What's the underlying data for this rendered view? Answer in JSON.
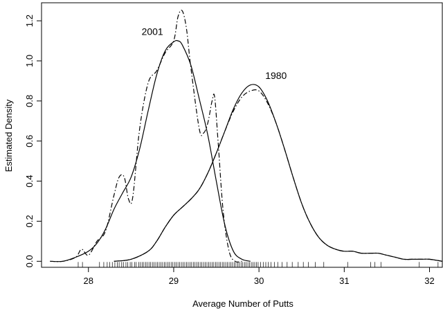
{
  "chart_data": {
    "type": "line",
    "title": "",
    "xlabel": "Average Number of Putts",
    "ylabel": "Estimated Density",
    "xlim": [
      27.45,
      32.15
    ],
    "ylim": [
      -0.03,
      1.29
    ],
    "x_ticks": [
      28,
      29,
      30,
      31,
      32
    ],
    "y_ticks": [
      0.0,
      0.2,
      0.4,
      0.6,
      0.8,
      1.0,
      1.2
    ],
    "x_tick_labels": [
      "28",
      "29",
      "30",
      "31",
      "32"
    ],
    "y_tick_labels": [
      "0.0",
      "0.2",
      "0.4",
      "0.6",
      "0.8",
      "1.0",
      "1.2"
    ],
    "grid": false,
    "annotations": [
      {
        "text": "2001",
        "x": 28.75,
        "y": 1.13
      },
      {
        "text": "1980",
        "x": 30.2,
        "y": 0.91
      }
    ],
    "series": [
      {
        "label": "2001",
        "style": "solid",
        "x": [
          27.55,
          27.7,
          27.85,
          28.0,
          28.1,
          28.2,
          28.3,
          28.4,
          28.5,
          28.6,
          28.7,
          28.8,
          28.9,
          29.0,
          29.05,
          29.1,
          29.2,
          29.3,
          29.4,
          29.5,
          29.6,
          29.7,
          29.8,
          29.9
        ],
        "y": [
          0.0,
          0.0,
          0.02,
          0.05,
          0.09,
          0.16,
          0.26,
          0.34,
          0.42,
          0.56,
          0.75,
          0.93,
          1.05,
          1.095,
          1.1,
          1.08,
          0.98,
          0.81,
          0.63,
          0.4,
          0.18,
          0.05,
          0.01,
          0.0
        ]
      },
      {
        "label": "2001",
        "style": "dashdot",
        "x": [
          27.55,
          27.7,
          27.85,
          27.92,
          28.0,
          28.1,
          28.2,
          28.3,
          28.36,
          28.42,
          28.47,
          28.52,
          28.6,
          28.7,
          28.8,
          28.9,
          29.0,
          29.05,
          29.1,
          29.15,
          29.2,
          29.3,
          29.35,
          29.4,
          29.45,
          29.48,
          29.52,
          29.58,
          29.65,
          29.72,
          29.8
        ],
        "y": [
          0.0,
          0.0,
          0.02,
          0.06,
          0.03,
          0.1,
          0.15,
          0.33,
          0.42,
          0.42,
          0.31,
          0.32,
          0.66,
          0.89,
          0.95,
          1.04,
          1.1,
          1.22,
          1.25,
          1.16,
          0.97,
          0.66,
          0.64,
          0.69,
          0.8,
          0.82,
          0.6,
          0.25,
          0.05,
          0.0,
          0.0
        ]
      },
      {
        "label": "1980",
        "style": "solid",
        "x": [
          28.3,
          28.5,
          28.7,
          28.8,
          28.9,
          29.0,
          29.1,
          29.2,
          29.3,
          29.4,
          29.5,
          29.6,
          29.7,
          29.8,
          29.9,
          30.0,
          30.1,
          30.2,
          30.3,
          30.4,
          30.5,
          30.6,
          30.7,
          30.8,
          30.9,
          31.0,
          31.1,
          31.2,
          31.3,
          31.4,
          31.5,
          31.6,
          31.7,
          31.8,
          31.9,
          32.0,
          32.15
        ],
        "y": [
          0.0,
          0.01,
          0.05,
          0.1,
          0.17,
          0.23,
          0.27,
          0.31,
          0.36,
          0.44,
          0.54,
          0.65,
          0.76,
          0.84,
          0.88,
          0.87,
          0.8,
          0.69,
          0.56,
          0.42,
          0.29,
          0.19,
          0.12,
          0.08,
          0.06,
          0.05,
          0.05,
          0.04,
          0.04,
          0.04,
          0.03,
          0.02,
          0.01,
          0.01,
          0.01,
          0.01,
          0.0
        ]
      },
      {
        "label": "1980",
        "style": "dashdot",
        "x": [
          28.3,
          28.5,
          28.7,
          28.8,
          28.9,
          29.0,
          29.1,
          29.2,
          29.3,
          29.4,
          29.5,
          29.6,
          29.7,
          29.8,
          29.9,
          30.0,
          30.1,
          30.2,
          30.3,
          30.4,
          30.5,
          30.6,
          30.7,
          30.8,
          30.9,
          31.0,
          31.1,
          31.2,
          31.3,
          31.4,
          31.5,
          31.6,
          31.7,
          31.8,
          31.9,
          32.0,
          32.15
        ],
        "y": [
          0.0,
          0.01,
          0.05,
          0.1,
          0.17,
          0.23,
          0.27,
          0.31,
          0.36,
          0.44,
          0.54,
          0.65,
          0.75,
          0.82,
          0.85,
          0.85,
          0.79,
          0.69,
          0.56,
          0.42,
          0.29,
          0.19,
          0.12,
          0.08,
          0.06,
          0.05,
          0.05,
          0.04,
          0.04,
          0.04,
          0.03,
          0.02,
          0.01,
          0.01,
          0.01,
          0.01,
          0.0
        ]
      }
    ],
    "rug_x": [
      27.88,
      27.93,
      28.13,
      28.18,
      28.22,
      28.25,
      28.28,
      28.31,
      28.34,
      28.36,
      28.39,
      28.41,
      28.44,
      28.46,
      28.49,
      28.51,
      28.54,
      28.56,
      28.59,
      28.61,
      28.63,
      28.65,
      28.67,
      28.69,
      28.71,
      28.73,
      28.75,
      28.77,
      28.79,
      28.81,
      28.83,
      28.85,
      28.87,
      28.89,
      28.91,
      28.93,
      28.95,
      28.97,
      28.99,
      29.01,
      29.03,
      29.05,
      29.07,
      29.09,
      29.11,
      29.13,
      29.15,
      29.17,
      29.19,
      29.21,
      29.23,
      29.25,
      29.27,
      29.29,
      29.31,
      29.33,
      29.35,
      29.37,
      29.39,
      29.41,
      29.43,
      29.45,
      29.47,
      29.49,
      29.51,
      29.53,
      29.55,
      29.57,
      29.59,
      29.61,
      29.63,
      29.65,
      29.67,
      29.69,
      29.71,
      29.73,
      29.75,
      29.77,
      29.79,
      29.81,
      29.83,
      29.85,
      29.87,
      29.89,
      29.91,
      29.93,
      29.95,
      29.97,
      29.99,
      30.02,
      30.05,
      30.08,
      30.11,
      30.14,
      30.18,
      30.22,
      30.27,
      30.33,
      30.39,
      30.46,
      30.52,
      30.58,
      30.66,
      30.76,
      31.04,
      31.31,
      31.36,
      31.43,
      31.88,
      32.1
    ]
  }
}
